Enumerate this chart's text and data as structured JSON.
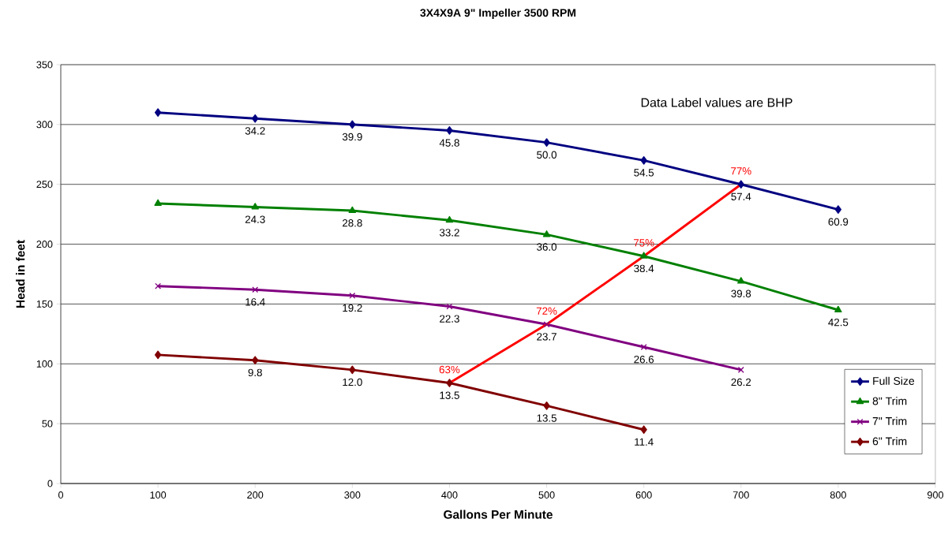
{
  "chart_data": {
    "type": "line",
    "title": "3X4X9A 9\" Impeller 3500 RPM",
    "xlabel": "Gallons Per Minute",
    "ylabel": "Head in feet",
    "annotations": [
      "Data Label values are BHP",
      {
        "text": "34.2",
        "x": 200,
        "y": 305
      },
      {
        "text": "39.9",
        "x": 300,
        "y": 300
      },
      {
        "text": "45.8",
        "x": 400,
        "y": 295
      },
      {
        "text": "50.0",
        "x": 500,
        "y": 285
      },
      {
        "text": "54.5",
        "x": 600,
        "y": 270
      },
      {
        "text": "57.4",
        "x": 700,
        "y": 250
      },
      {
        "text": "60.9",
        "x": 800,
        "y": 229
      },
      {
        "text": "24.3",
        "x": 200,
        "y": 231
      },
      {
        "text": "28.8",
        "x": 300,
        "y": 228
      },
      {
        "text": "33.2",
        "x": 400,
        "y": 220
      },
      {
        "text": "36.0",
        "x": 500,
        "y": 208
      },
      {
        "text": "38.4",
        "x": 600,
        "y": 190
      },
      {
        "text": "39.8",
        "x": 700,
        "y": 169
      },
      {
        "text": "42.5",
        "x": 800,
        "y": 145
      },
      {
        "text": "16.4",
        "x": 200,
        "y": 162
      },
      {
        "text": "19.2",
        "x": 300,
        "y": 157
      },
      {
        "text": "22.3",
        "x": 400,
        "y": 148
      },
      {
        "text": "23.7",
        "x": 500,
        "y": 133
      },
      {
        "text": "26.6",
        "x": 600,
        "y": 114
      },
      {
        "text": "26.2",
        "x": 700,
        "y": 95
      },
      {
        "text": "9.8",
        "x": 200,
        "y": 103
      },
      {
        "text": "12.0",
        "x": 300,
        "y": 95
      },
      {
        "text": "13.5",
        "x": 400,
        "y": 84
      },
      {
        "text": "13.5",
        "x": 500,
        "y": 65
      },
      {
        "text": "11.4",
        "x": 600,
        "y": 45
      },
      {
        "text": "63%",
        "x": 400,
        "y": 84
      },
      {
        "text": "72%",
        "x": 500,
        "y": 133
      },
      {
        "text": "75%",
        "x": 600,
        "y": 190
      },
      {
        "text": "77%",
        "x": 700,
        "y": 250
      }
    ],
    "x": [
      100,
      200,
      300,
      400,
      500,
      600,
      700,
      800
    ],
    "xlim": [
      0,
      900
    ],
    "xticks": [
      0,
      100,
      200,
      300,
      400,
      500,
      600,
      700,
      800,
      900
    ],
    "ylim": [
      0,
      350
    ],
    "yticks": [
      0,
      50,
      100,
      150,
      200,
      250,
      300,
      350
    ],
    "grid": "y",
    "legend": "bottom right",
    "series": [
      {
        "name": "Full Size",
        "color": "#000080",
        "marker": "diamond",
        "values": [
          310,
          305,
          300,
          295,
          285,
          270,
          250,
          229
        ]
      },
      {
        "name": "8\" Trim",
        "color": "#008000",
        "marker": "triangle",
        "values": [
          234,
          231,
          228,
          220,
          208,
          190,
          169,
          145
        ]
      },
      {
        "name": "7\" Trim",
        "color": "#800080",
        "marker": "cross",
        "x": [
          100,
          200,
          300,
          400,
          500,
          600,
          700
        ],
        "values": [
          165,
          162,
          157,
          148,
          133,
          114,
          95
        ]
      },
      {
        "name": "6\" Trim",
        "color": "#800000",
        "marker": "diamond",
        "x": [
          100,
          200,
          300,
          400,
          500,
          600
        ],
        "values": [
          107.5,
          103,
          95,
          84,
          65,
          45
        ]
      },
      {
        "color": "#ff0000",
        "marker": "none",
        "x": [
          400,
          500,
          600,
          700
        ],
        "values": [
          84,
          133,
          190,
          250
        ]
      }
    ]
  }
}
